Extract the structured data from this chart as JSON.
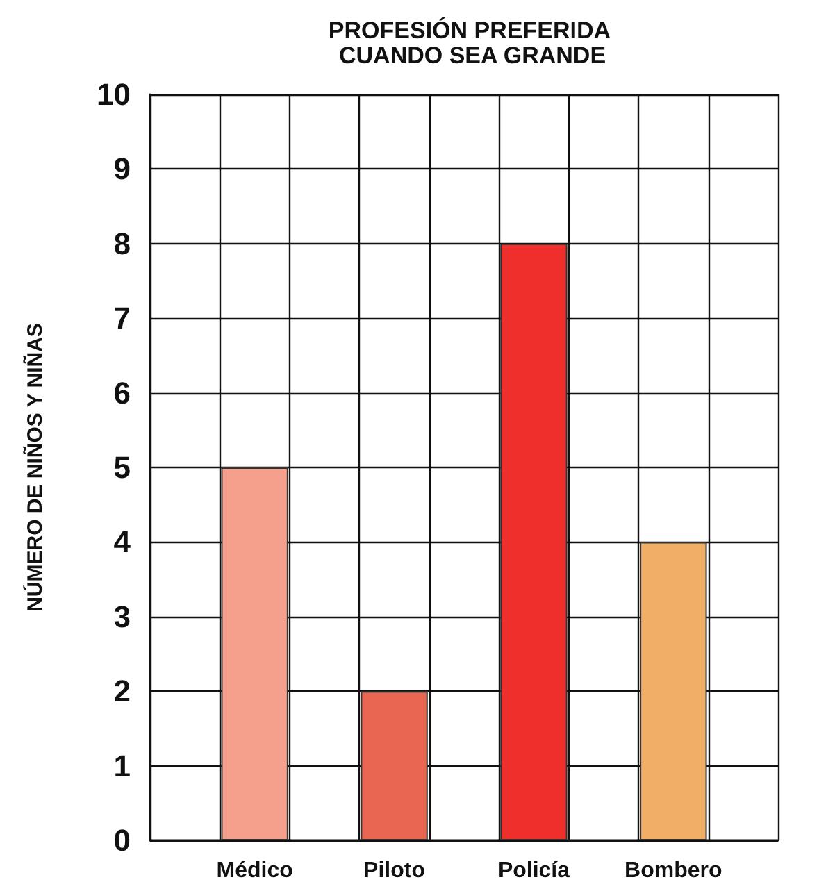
{
  "chart_data": {
    "type": "bar",
    "title": "PROFESIÓN PREFERIDA CUANDO SEA GRANDE",
    "ylabel": "NÚMERO DE NIÑOS Y NIÑAS",
    "categories": [
      null,
      "Médico",
      null,
      "Piloto",
      null,
      "Policía",
      null,
      "Bombero",
      null
    ],
    "values": [
      null,
      5,
      null,
      2,
      null,
      8,
      null,
      4,
      null
    ],
    "colors": [
      null,
      "#f5a08c",
      null,
      "#e96652",
      null,
      "#ee2f2c",
      null,
      "#f1ae66",
      null
    ],
    "ylim": [
      0,
      10
    ],
    "yticks": [
      0,
      1,
      2,
      3,
      4,
      5,
      6,
      7,
      8,
      9,
      10
    ],
    "grid": true
  }
}
